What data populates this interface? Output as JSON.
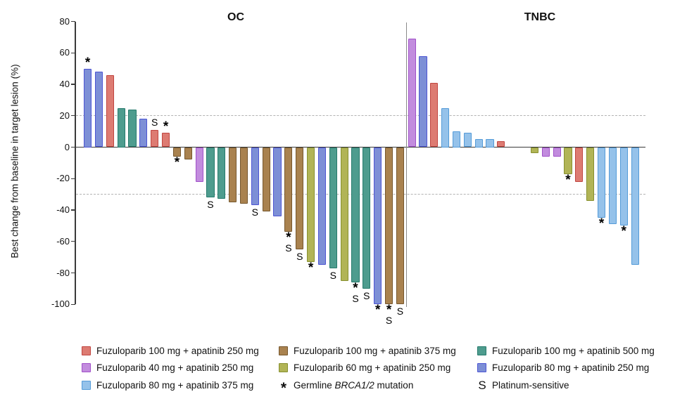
{
  "colors": {
    "fuzu100_apa250": {
      "fill": "#dd7b72",
      "stroke": "#c04540"
    },
    "fuzu40_apa250": {
      "fill": "#c28cde",
      "stroke": "#a050c8"
    },
    "fuzu80_apa375": {
      "fill": "#95c2ea",
      "stroke": "#549bd8"
    },
    "fuzu100_apa375": {
      "fill": "#a9824f",
      "stroke": "#76572d"
    },
    "fuzu60_apa250": {
      "fill": "#b1b456",
      "stroke": "#87902f"
    },
    "fuzu100_apa500": {
      "fill": "#4e9c8e",
      "stroke": "#267a6c"
    },
    "fuzu80_apa250": {
      "fill": "#7d8fd6",
      "stroke": "#4d55d4"
    }
  },
  "chart_data": {
    "type": "bar",
    "subtype": "waterfall",
    "ylabel": "Best change from baseline in target lesion (%)",
    "ylim": [
      -100,
      80
    ],
    "yticks": [
      80,
      60,
      40,
      20,
      0,
      -20,
      -40,
      -60,
      -80,
      -100
    ],
    "reference_lines": [
      20,
      -30
    ],
    "grid": false,
    "flag_symbols": {
      "brca_mutation": "*",
      "platinum_sensitive": "S"
    },
    "groups": [
      {
        "label": "OC",
        "bars": [
          {
            "value": 50,
            "treatment": "fuzu80_apa250",
            "flags": [
              "*"
            ]
          },
          {
            "value": 48,
            "treatment": "fuzu80_apa250"
          },
          {
            "value": 46,
            "treatment": "fuzu100_apa250"
          },
          {
            "value": 25,
            "treatment": "fuzu100_apa500"
          },
          {
            "value": 24,
            "treatment": "fuzu100_apa500"
          },
          {
            "value": 18,
            "treatment": "fuzu80_apa250"
          },
          {
            "value": 11,
            "treatment": "fuzu100_apa250",
            "flags": [
              "S"
            ]
          },
          {
            "value": 9,
            "treatment": "fuzu100_apa250",
            "flags": [
              "*"
            ]
          },
          {
            "value": -6,
            "treatment": "fuzu100_apa375",
            "flags": [
              "*"
            ]
          },
          {
            "value": -8,
            "treatment": "fuzu100_apa375"
          },
          {
            "value": -22,
            "treatment": "fuzu40_apa250"
          },
          {
            "value": -32,
            "treatment": "fuzu100_apa500",
            "flags": [
              "S"
            ]
          },
          {
            "value": -33,
            "treatment": "fuzu100_apa500"
          },
          {
            "value": -35,
            "treatment": "fuzu100_apa375"
          },
          {
            "value": -36,
            "treatment": "fuzu100_apa375"
          },
          {
            "value": -37,
            "treatment": "fuzu80_apa250",
            "flags": [
              "S"
            ]
          },
          {
            "value": -41,
            "treatment": "fuzu100_apa375"
          },
          {
            "value": -44,
            "treatment": "fuzu80_apa250"
          },
          {
            "value": -54,
            "treatment": "fuzu100_apa375",
            "flags": [
              "*",
              "S"
            ]
          },
          {
            "value": -65,
            "treatment": "fuzu100_apa375",
            "flags": [
              "S"
            ]
          },
          {
            "value": -73,
            "treatment": "fuzu60_apa250",
            "flags": [
              "*"
            ]
          },
          {
            "value": -75,
            "treatment": "fuzu80_apa250"
          },
          {
            "value": -77,
            "treatment": "fuzu100_apa500",
            "flags": [
              "S"
            ]
          },
          {
            "value": -85,
            "treatment": "fuzu60_apa250"
          },
          {
            "value": -86,
            "treatment": "fuzu100_apa500",
            "flags": [
              "*",
              "S"
            ]
          },
          {
            "value": -90,
            "treatment": "fuzu100_apa500",
            "flags": [
              "S"
            ]
          },
          {
            "value": -100,
            "treatment": "fuzu80_apa250",
            "flags": [
              "*"
            ]
          },
          {
            "value": -100,
            "treatment": "fuzu100_apa375",
            "flags": [
              "*",
              "S"
            ]
          },
          {
            "value": -100,
            "treatment": "fuzu100_apa375",
            "flags": [
              "S"
            ]
          }
        ]
      },
      {
        "label": "TNBC",
        "bars": [
          {
            "value": 69,
            "treatment": "fuzu40_apa250"
          },
          {
            "value": 58,
            "treatment": "fuzu80_apa250"
          },
          {
            "value": 41,
            "treatment": "fuzu100_apa250"
          },
          {
            "value": 25,
            "treatment": "fuzu80_apa375"
          },
          {
            "value": 10,
            "treatment": "fuzu80_apa375"
          },
          {
            "value": 9,
            "treatment": "fuzu80_apa375"
          },
          {
            "value": 5,
            "treatment": "fuzu80_apa375"
          },
          {
            "value": 5,
            "treatment": "fuzu80_apa375"
          },
          {
            "value": 4,
            "treatment": "fuzu100_apa250"
          },
          {
            "value": 0,
            "treatment": null
          },
          {
            "value": 0,
            "treatment": null
          },
          {
            "value": -4,
            "treatment": "fuzu60_apa250"
          },
          {
            "value": -6,
            "treatment": "fuzu40_apa250"
          },
          {
            "value": -6,
            "treatment": "fuzu40_apa250"
          },
          {
            "value": -17,
            "treatment": "fuzu60_apa250",
            "flags": [
              "*"
            ]
          },
          {
            "value": -22,
            "treatment": "fuzu100_apa250"
          },
          {
            "value": -34,
            "treatment": "fuzu60_apa250"
          },
          {
            "value": -45,
            "treatment": "fuzu80_apa375",
            "flags": [
              "*"
            ]
          },
          {
            "value": -49,
            "treatment": "fuzu80_apa375"
          },
          {
            "value": -50,
            "treatment": "fuzu80_apa375",
            "flags": [
              "*"
            ]
          },
          {
            "value": -75,
            "treatment": "fuzu80_apa375"
          }
        ]
      }
    ]
  },
  "legend": {
    "items": [
      {
        "swatch": "fuzu100_apa250",
        "label": "Fuzuloparib 100 mg + apatinib 250 mg"
      },
      {
        "swatch": "fuzu40_apa250",
        "label": "Fuzuloparib 40 mg + apatinib 250 mg"
      },
      {
        "swatch": "fuzu80_apa375",
        "label": "Fuzuloparib 80 mg + apatinib 375 mg"
      },
      {
        "swatch": "fuzu100_apa375",
        "label": "Fuzuloparib 100 mg + apatinib 375 mg"
      },
      {
        "swatch": "fuzu60_apa250",
        "label": "Fuzuloparib 60 mg + apatinib 250 mg"
      },
      {
        "symbol": "*",
        "label_prefix": "Germline ",
        "label_italic": "BRCA1/2",
        "label_suffix": " mutation"
      },
      {
        "swatch": "fuzu100_apa500",
        "label": "Fuzuloparib 100 mg + apatinib 500 mg"
      },
      {
        "swatch": "fuzu80_apa250",
        "label": "Fuzuloparib 80 mg + apatinib 250 mg"
      },
      {
        "symbol": "S",
        "label": "Platinum-sensitive"
      }
    ]
  }
}
